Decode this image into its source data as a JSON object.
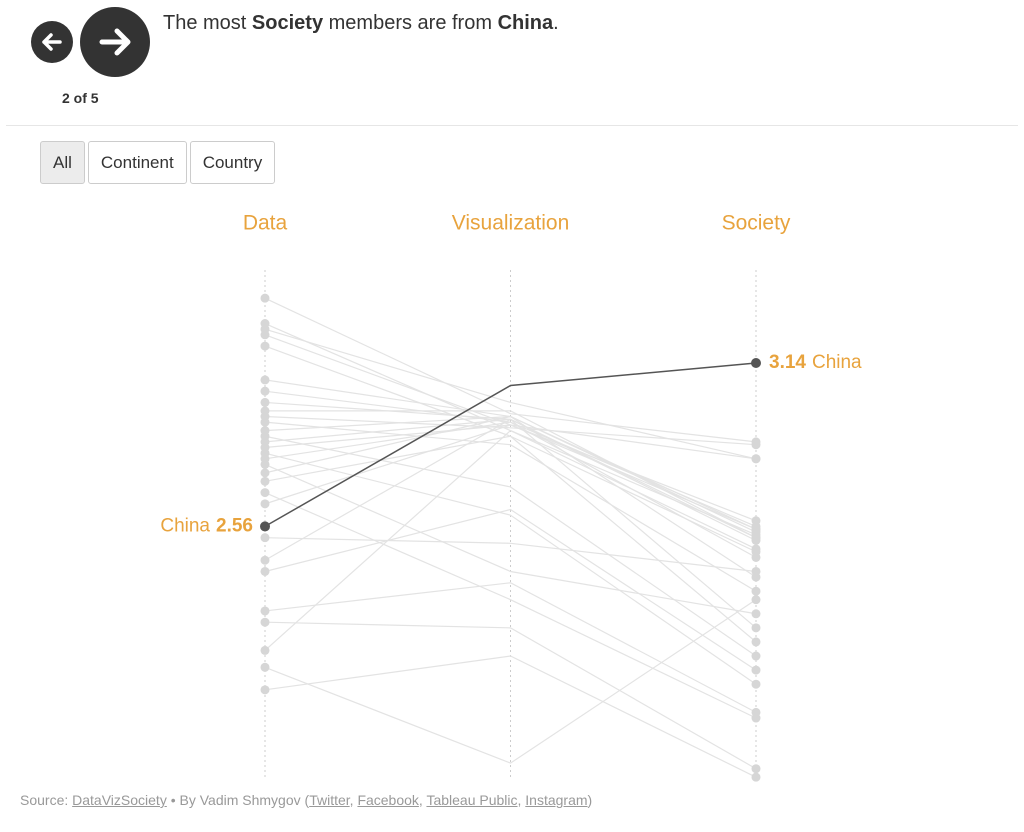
{
  "nav": {
    "counter": "2 of 5"
  },
  "headline": [
    "The most ",
    "Society",
    " members are from ",
    "China",
    "."
  ],
  "filters": [
    "All",
    "Continent",
    "Country"
  ],
  "chart_data": {
    "type": "slope",
    "categories": [
      "Data",
      "Visualization",
      "Society"
    ],
    "ylim": [
      1.66,
      3.47
    ],
    "highlight": {
      "name": "China",
      "color": "#555555",
      "values": [
        2.56,
        3.06,
        3.14
      ]
    },
    "series": [
      {
        "values": [
          3.37,
          2.96,
          2.86
        ]
      },
      {
        "values": [
          3.28,
          2.9,
          2.53
        ]
      },
      {
        "values": [
          3.26,
          3.0,
          2.8
        ]
      },
      {
        "values": [
          3.24,
          2.92,
          2.55
        ]
      },
      {
        "values": [
          3.2,
          2.88,
          2.47
        ]
      },
      {
        "values": [
          3.08,
          2.95,
          2.38
        ]
      },
      {
        "values": [
          3.04,
          2.93,
          2.56
        ]
      },
      {
        "values": [
          3.0,
          2.94,
          2.2
        ]
      },
      {
        "values": [
          2.97,
          2.97,
          2.52
        ]
      },
      {
        "values": [
          2.95,
          2.91,
          2.85
        ]
      },
      {
        "values": [
          2.93,
          2.85,
          2.33
        ]
      },
      {
        "values": [
          2.9,
          2.95,
          2.54
        ]
      },
      {
        "values": [
          2.88,
          2.7,
          2.1
        ]
      },
      {
        "values": [
          2.86,
          2.94,
          2.51
        ]
      },
      {
        "values": [
          2.84,
          2.92,
          2.8
        ]
      },
      {
        "values": [
          2.82,
          2.6,
          2.0
        ]
      },
      {
        "values": [
          2.8,
          2.93,
          2.45
        ]
      },
      {
        "values": [
          2.78,
          2.4,
          2.25
        ]
      },
      {
        "values": [
          2.75,
          2.95,
          2.55
        ]
      },
      {
        "values": [
          2.72,
          2.88,
          2.15
        ]
      },
      {
        "values": [
          2.68,
          2.3,
          1.88
        ]
      },
      {
        "values": [
          2.64,
          2.92,
          2.58
        ]
      },
      {
        "values": [
          2.52,
          2.5,
          2.4
        ]
      },
      {
        "values": [
          2.44,
          2.94,
          2.52
        ]
      },
      {
        "values": [
          2.4,
          2.62,
          2.05
        ]
      },
      {
        "values": [
          2.26,
          2.36,
          1.9
        ]
      },
      {
        "values": [
          2.22,
          2.2,
          1.7
        ]
      },
      {
        "values": [
          2.12,
          2.9,
          2.48
        ]
      },
      {
        "values": [
          2.06,
          1.72,
          2.3
        ]
      },
      {
        "values": [
          1.98,
          2.1,
          1.67
        ]
      }
    ]
  },
  "footer": [
    "Source: ",
    "DataVizSociety",
    " • By Vadim Shmygov (",
    "Twitter",
    ", ",
    "Facebook",
    ", ",
    "Tableau Public",
    ", ",
    "Instagram",
    ")"
  ]
}
